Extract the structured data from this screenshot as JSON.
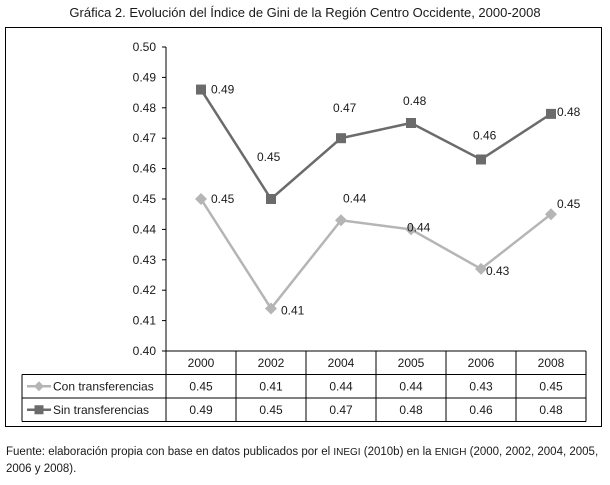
{
  "title": "Gráfica 2. Evolución del Índice de Gini de la Región Centro Occidente, 2000-2008",
  "source": {
    "prefix": "Fuente: elaboración propia con base en datos publicados por el ",
    "inegi": "INEGI",
    "middle": " (2010b) en la ",
    "enigh": "ENIGH",
    "suffix": " (2000, 2002, 2004, 2005, 2006 y 2008)."
  },
  "chart_data": {
    "type": "line",
    "categories": [
      "2000",
      "2002",
      "2004",
      "2005",
      "2006",
      "2008"
    ],
    "ylim": [
      0.4,
      0.5
    ],
    "yticks": [
      "0.40",
      "0.41",
      "0.42",
      "0.43",
      "0.44",
      "0.45",
      "0.46",
      "0.47",
      "0.48",
      "0.49",
      "0.50"
    ],
    "grid": false,
    "series": [
      {
        "name": "Con transferencias",
        "marker": "diamond",
        "color": "#b5b5b5",
        "values": [
          0.45,
          0.414,
          0.443,
          0.44,
          0.427,
          0.445
        ],
        "labels": [
          "0.45",
          "0.41",
          "0.44",
          "0.44",
          "0.43",
          "0.45"
        ]
      },
      {
        "name": "Sin transferencias",
        "marker": "square",
        "color": "#6b6b6b",
        "values": [
          0.486,
          0.45,
          0.47,
          0.475,
          0.463,
          0.478
        ],
        "labels": [
          "0.49",
          "0.45",
          "0.47",
          "0.48",
          "0.46",
          "0.48"
        ]
      }
    ],
    "data_table": {
      "header": [
        "2000",
        "2002",
        "2004",
        "2005",
        "2006",
        "2008"
      ],
      "rows": [
        {
          "label": "Con transferencias",
          "cells": [
            "0.45",
            "0.41",
            "0.44",
            "0.44",
            "0.43",
            "0.45"
          ]
        },
        {
          "label": "Sin transferencias",
          "cells": [
            "0.49",
            "0.45",
            "0.47",
            "0.48",
            "0.46",
            "0.48"
          ]
        }
      ]
    }
  }
}
